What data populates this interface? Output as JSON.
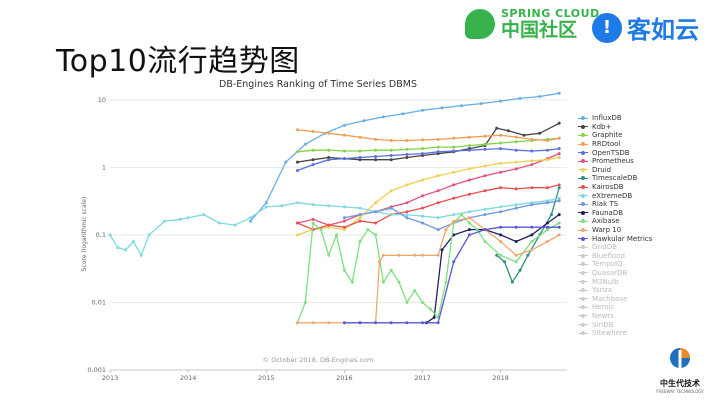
{
  "slide": {
    "title": "Top10流行趋势图",
    "logos": {
      "spring_cloud_top": "SPRING CLOUD",
      "spring_cloud_bottom": "中国社区",
      "kerunyun": "客如云",
      "zhongsheng": "中生代技术",
      "zhongsheng_sub": "FREEWAY TECHNOLOGY"
    }
  },
  "chart_data": {
    "type": "line",
    "title": "DB-Engines Ranking of Time Series DBMS",
    "ylabel": "Score (logarithmic scale)",
    "xlabel": "",
    "log_scale": true,
    "ylim": [
      0.001,
      14
    ],
    "xlim": [
      2013.0,
      2018.85
    ],
    "xticks": [
      "2013",
      "2014",
      "2015",
      "2016",
      "2017",
      "2018"
    ],
    "yticks": [
      "10",
      "1",
      "0.1",
      "0.01",
      "0.001"
    ],
    "grid": "horizontal",
    "legend": "right",
    "copyright": "© October 2018, DB-Engines.com",
    "series": [
      {
        "name": "InfluxDB",
        "color": "#6aaee6",
        "active": true,
        "x": [
          2014.8,
          2015.0,
          2015.25,
          2015.5,
          2015.75,
          2016.0,
          2016.25,
          2016.5,
          2016.75,
          2017.0,
          2017.25,
          2017.5,
          2017.75,
          2018.0,
          2018.25,
          2018.5,
          2018.75
        ],
        "y": [
          0.16,
          0.3,
          1.2,
          2.2,
          3.2,
          4.2,
          4.9,
          5.6,
          6.2,
          7.0,
          7.6,
          8.2,
          8.8,
          9.6,
          10.5,
          11.2,
          12.5
        ]
      },
      {
        "name": "Kdb+",
        "color": "#444444",
        "active": true,
        "x": [
          2015.4,
          2015.6,
          2015.8,
          2016.0,
          2016.2,
          2016.4,
          2016.6,
          2016.8,
          2017.0,
          2017.2,
          2017.4,
          2017.6,
          2017.8,
          2017.95,
          2018.1,
          2018.3,
          2018.5,
          2018.75
        ],
        "y": [
          1.2,
          1.3,
          1.4,
          1.35,
          1.3,
          1.3,
          1.3,
          1.4,
          1.5,
          1.6,
          1.7,
          1.9,
          2.1,
          3.8,
          3.5,
          3.0,
          3.2,
          4.5
        ]
      },
      {
        "name": "Graphite",
        "color": "#82d34a",
        "active": true,
        "x": [
          2015.4,
          2015.6,
          2015.8,
          2016.0,
          2016.2,
          2016.4,
          2016.6,
          2016.8,
          2017.0,
          2017.2,
          2017.4,
          2017.6,
          2017.8,
          2018.0,
          2018.2,
          2018.4,
          2018.6,
          2018.75
        ],
        "y": [
          1.7,
          1.8,
          1.8,
          1.75,
          1.75,
          1.8,
          1.8,
          1.85,
          1.9,
          2.0,
          2.0,
          2.1,
          2.2,
          2.3,
          2.4,
          2.5,
          2.6,
          2.7
        ]
      },
      {
        "name": "RRDtool",
        "color": "#f0a055",
        "active": true,
        "x": [
          2015.4,
          2015.6,
          2015.8,
          2016.0,
          2016.2,
          2016.4,
          2016.6,
          2016.8,
          2017.0,
          2017.2,
          2017.4,
          2017.6,
          2017.8,
          2018.0,
          2018.2,
          2018.4,
          2018.6,
          2018.75
        ],
        "y": [
          3.6,
          3.4,
          3.2,
          3.0,
          2.8,
          2.6,
          2.5,
          2.5,
          2.55,
          2.6,
          2.7,
          2.8,
          2.9,
          3.0,
          2.8,
          2.6,
          2.5,
          2.7
        ]
      },
      {
        "name": "OpenTSDB",
        "color": "#5c6ee0",
        "active": true,
        "x": [
          2015.4,
          2015.6,
          2015.8,
          2016.0,
          2016.2,
          2016.4,
          2016.6,
          2016.8,
          2017.0,
          2017.2,
          2017.4,
          2017.6,
          2017.8,
          2018.0,
          2018.2,
          2018.4,
          2018.6,
          2018.75
        ],
        "y": [
          0.9,
          1.1,
          1.3,
          1.35,
          1.4,
          1.45,
          1.5,
          1.55,
          1.6,
          1.7,
          1.75,
          1.8,
          1.85,
          1.9,
          1.8,
          1.75,
          1.8,
          1.9
        ]
      },
      {
        "name": "Prometheus",
        "color": "#e8507a",
        "active": true,
        "x": [
          2015.4,
          2015.6,
          2015.8,
          2016.0,
          2016.2,
          2016.4,
          2016.6,
          2016.8,
          2017.0,
          2017.2,
          2017.4,
          2017.6,
          2017.8,
          2018.0,
          2018.2,
          2018.4,
          2018.6,
          2018.75
        ],
        "y": [
          0.15,
          0.17,
          0.14,
          0.16,
          0.2,
          0.22,
          0.26,
          0.3,
          0.38,
          0.45,
          0.55,
          0.65,
          0.75,
          0.85,
          0.95,
          1.1,
          1.35,
          1.6
        ]
      },
      {
        "name": "Druid",
        "color": "#f0d050",
        "active": true,
        "x": [
          2015.4,
          2015.6,
          2015.8,
          2016.0,
          2016.2,
          2016.4,
          2016.6,
          2016.8,
          2017.0,
          2017.2,
          2017.4,
          2017.6,
          2017.8,
          2018.0,
          2018.2,
          2018.4,
          2018.6,
          2018.75
        ],
        "y": [
          0.1,
          0.12,
          0.13,
          0.12,
          0.18,
          0.3,
          0.45,
          0.55,
          0.65,
          0.75,
          0.85,
          0.95,
          1.05,
          1.15,
          1.2,
          1.25,
          1.3,
          1.4
        ]
      },
      {
        "name": "TimescaleDB",
        "color": "#2f8f7f",
        "active": true,
        "x": [
          2017.95,
          2018.05,
          2018.15,
          2018.25,
          2018.35,
          2018.5,
          2018.65,
          2018.75
        ],
        "y": [
          0.05,
          0.04,
          0.02,
          0.03,
          0.05,
          0.1,
          0.2,
          0.5
        ]
      },
      {
        "name": "KairosDB",
        "color": "#e85050",
        "active": true,
        "x": [
          2015.4,
          2015.6,
          2015.8,
          2016.0,
          2016.2,
          2016.4,
          2016.6,
          2016.8,
          2017.0,
          2017.2,
          2017.4,
          2017.6,
          2017.8,
          2018.0,
          2018.2,
          2018.4,
          2018.6,
          2018.75
        ],
        "y": [
          0.15,
          0.12,
          0.14,
          0.13,
          0.16,
          0.15,
          0.2,
          0.22,
          0.25,
          0.3,
          0.35,
          0.4,
          0.45,
          0.5,
          0.48,
          0.5,
          0.5,
          0.55
        ]
      },
      {
        "name": "eXtremeDB",
        "color": "#80d8e0",
        "active": true,
        "x": [
          2013.0,
          2013.1,
          2013.2,
          2013.3,
          2013.4,
          2013.5,
          2013.7,
          2013.9,
          2014.0,
          2014.2,
          2014.4,
          2014.6,
          2014.8,
          2015.0,
          2015.2,
          2015.4,
          2015.6,
          2015.8,
          2016.0,
          2016.2,
          2016.4,
          2016.6,
          2016.8,
          2017.0,
          2017.2,
          2017.4,
          2017.6,
          2017.8,
          2018.0,
          2018.2,
          2018.4,
          2018.6,
          2018.75
        ],
        "y": [
          0.1,
          0.065,
          0.06,
          0.08,
          0.05,
          0.1,
          0.16,
          0.17,
          0.18,
          0.2,
          0.15,
          0.14,
          0.18,
          0.26,
          0.27,
          0.3,
          0.28,
          0.27,
          0.26,
          0.25,
          0.22,
          0.2,
          0.2,
          0.19,
          0.18,
          0.2,
          0.22,
          0.24,
          0.26,
          0.28,
          0.3,
          0.32,
          0.35
        ]
      },
      {
        "name": "Riak TS",
        "color": "#7098e0",
        "active": true,
        "x": [
          2016.0,
          2016.2,
          2016.4,
          2016.6,
          2016.8,
          2017.0,
          2017.2,
          2017.4,
          2017.6,
          2017.8,
          2018.0,
          2018.2,
          2018.4,
          2018.6,
          2018.75
        ],
        "y": [
          0.18,
          0.2,
          0.22,
          0.25,
          0.18,
          0.15,
          0.12,
          0.15,
          0.18,
          0.2,
          0.22,
          0.25,
          0.28,
          0.3,
          0.32
        ]
      },
      {
        "name": "FaunaDB",
        "color": "#202060",
        "active": true,
        "x": [
          2017.05,
          2017.15,
          2017.25,
          2017.4,
          2017.6,
          2017.8,
          2018.0,
          2018.2,
          2018.4,
          2018.6,
          2018.75
        ],
        "y": [
          0.005,
          0.006,
          0.06,
          0.1,
          0.12,
          0.12,
          0.1,
          0.08,
          0.1,
          0.15,
          0.2
        ]
      },
      {
        "name": "Axibase",
        "color": "#7ee07e",
        "active": true,
        "x": [
          2015.4,
          2015.5,
          2015.6,
          2015.7,
          2015.8,
          2015.9,
          2016.0,
          2016.1,
          2016.2,
          2016.3,
          2016.4,
          2016.5,
          2016.6,
          2016.7,
          2016.8,
          2016.9,
          2017.0,
          2017.1,
          2017.2,
          2017.3,
          2017.4,
          2017.5,
          2017.6,
          2017.7,
          2017.8,
          2018.0,
          2018.2,
          2018.4,
          2018.6,
          2018.75
        ],
        "y": [
          0.005,
          0.01,
          0.15,
          0.12,
          0.05,
          0.1,
          0.03,
          0.02,
          0.08,
          0.12,
          0.1,
          0.02,
          0.03,
          0.02,
          0.01,
          0.015,
          0.01,
          0.008,
          0.006,
          0.02,
          0.15,
          0.2,
          0.15,
          0.12,
          0.08,
          0.05,
          0.04,
          0.08,
          0.12,
          0.15
        ]
      },
      {
        "name": "Warp 10",
        "color": "#f0a870",
        "active": true,
        "x": [
          2015.4,
          2015.6,
          2015.8,
          2016.0,
          2016.2,
          2016.4,
          2016.45,
          2016.5,
          2016.7,
          2016.9,
          2017.0,
          2017.2,
          2017.3,
          2017.4,
          2017.6,
          2017.8,
          2018.0,
          2018.2,
          2018.4,
          2018.6,
          2018.75
        ],
        "y": [
          0.005,
          0.005,
          0.005,
          0.005,
          0.005,
          0.005,
          0.04,
          0.05,
          0.05,
          0.05,
          0.05,
          0.05,
          0.12,
          0.16,
          0.18,
          0.12,
          0.08,
          0.05,
          0.06,
          0.08,
          0.1
        ]
      },
      {
        "name": "Hawkular Metrics",
        "color": "#5858d8",
        "active": true,
        "x": [
          2016.0,
          2016.2,
          2016.4,
          2016.6,
          2016.8,
          2017.0,
          2017.2,
          2017.4,
          2017.6,
          2017.8,
          2018.0,
          2018.2,
          2018.4,
          2018.6,
          2018.75
        ],
        "y": [
          0.005,
          0.005,
          0.005,
          0.005,
          0.005,
          0.005,
          0.005,
          0.04,
          0.1,
          0.12,
          0.13,
          0.13,
          0.13,
          0.13,
          0.13
        ]
      },
      {
        "name": "GridDB",
        "color": "#cccccc",
        "active": false
      },
      {
        "name": "Blueflood",
        "color": "#cccccc",
        "active": false
      },
      {
        "name": "TempoIQ",
        "color": "#cccccc",
        "active": false
      },
      {
        "name": "QuasarDB",
        "color": "#cccccc",
        "active": false
      },
      {
        "name": "M3Nulb",
        "color": "#cccccc",
        "active": false
      },
      {
        "name": "Yanza",
        "color": "#cccccc",
        "active": false
      },
      {
        "name": "Machbase",
        "color": "#cccccc",
        "active": false
      },
      {
        "name": "Heroic",
        "color": "#cccccc",
        "active": false
      },
      {
        "name": "Newts",
        "color": "#cccccc",
        "active": false
      },
      {
        "name": "SiriDB",
        "color": "#cccccc",
        "active": false
      },
      {
        "name": "Sitewhere",
        "color": "#cccccc",
        "active": false
      }
    ]
  }
}
